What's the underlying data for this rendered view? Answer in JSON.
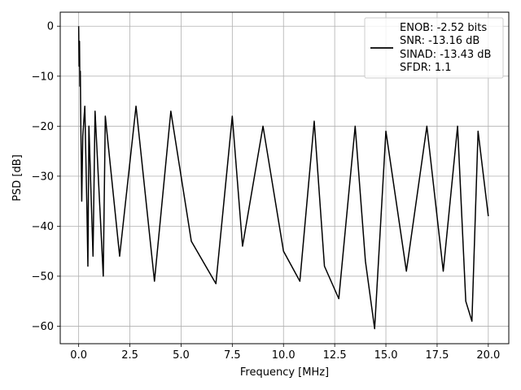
{
  "chart_data": {
    "type": "line",
    "xlabel": "Frequency [MHz]",
    "ylabel": "PSD [dB]",
    "xlim": [
      -0.9,
      21.0
    ],
    "ylim": [
      -63.5,
      2.8
    ],
    "xticks": [
      0.0,
      2.5,
      5.0,
      7.5,
      10.0,
      12.5,
      15.0,
      17.5,
      20.0
    ],
    "xtick_labels": [
      "0.0",
      "2.5",
      "5.0",
      "7.5",
      "10.0",
      "12.5",
      "15.0",
      "17.5",
      "20.0"
    ],
    "yticks": [
      0,
      -10,
      -20,
      -30,
      -40,
      -50,
      -60
    ],
    "ytick_labels": [
      "0",
      "−10",
      "−20",
      "−30",
      "−40",
      "−50",
      "−60"
    ],
    "grid": true,
    "legend_position": "top-right",
    "series": [
      {
        "color": "#000000",
        "x": [
          0.0,
          0.02,
          0.04,
          0.06,
          0.08,
          0.1,
          0.15,
          0.2,
          0.3,
          0.4,
          0.45,
          0.5,
          0.7,
          0.8,
          1.2,
          1.3,
          2.0,
          2.8,
          3.7,
          4.5,
          5.5,
          6.7,
          7.5,
          8.0,
          9.0,
          10.0,
          10.8,
          11.5,
          12.0,
          12.7,
          13.5,
          14.0,
          14.45,
          15.0,
          16.0,
          17.0,
          17.8,
          18.5,
          18.9,
          19.2,
          19.5,
          20.0
        ],
        "y": [
          0.0,
          -8.0,
          -3.0,
          -12.0,
          -9.0,
          -18.0,
          -35.0,
          -22.0,
          -16.0,
          -36.0,
          -48.0,
          -20.0,
          -46.0,
          -17.0,
          -50.0,
          -18.0,
          -46.0,
          -16.0,
          -51.0,
          -17.0,
          -43.0,
          -51.5,
          -18.0,
          -44.0,
          -20.0,
          -45.0,
          -51.0,
          -19.0,
          -48.0,
          -54.5,
          -20.0,
          -47.0,
          -60.5,
          -21.0,
          -49.0,
          -20.0,
          -49.0,
          -20.0,
          -55.0,
          -59.0,
          -21.0,
          -38.0
        ]
      }
    ]
  },
  "legend": {
    "lines": [
      "ENOB: -2.52 bits",
      "SNR: -13.16 dB",
      "SINAD: -13.43 dB",
      "SFDR: 1.1"
    ]
  }
}
